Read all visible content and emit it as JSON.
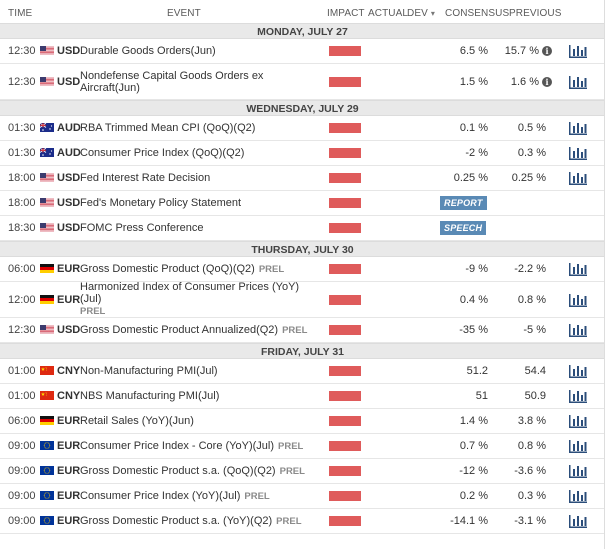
{
  "header": {
    "time": "TIME",
    "event": "EVENT",
    "impact": "IMPACT",
    "actual": "ACTUAL",
    "dev": "DEV",
    "consensus": "CONSENSUS",
    "previous": "PREVIOUS",
    "sort_glyph": "▾"
  },
  "colors": {
    "impact_high": "#df5b5b",
    "badge": "#5a8ab5",
    "day_bg": "#e9e9e9"
  },
  "days": [
    {
      "label": "MONDAY, JULY 27",
      "events": [
        {
          "time": "12:30",
          "currency": "USD",
          "flag": "us",
          "event": "Durable Goods Orders(Jun)",
          "prel": "",
          "consensus": "6.5 %",
          "previous": "15.7 %",
          "info": "i",
          "chart": true
        },
        {
          "time": "12:30",
          "currency": "USD",
          "flag": "us",
          "event": "Nondefense Capital Goods Orders ex Aircraft(Jun)",
          "prel": "",
          "consensus": "1.5 %",
          "previous": "1.6 %",
          "info": "i",
          "chart": true,
          "tall": true
        }
      ]
    },
    {
      "label": "WEDNESDAY, JULY 29",
      "events": [
        {
          "time": "01:30",
          "currency": "AUD",
          "flag": "au",
          "event": "RBA Trimmed Mean CPI (QoQ)(Q2)",
          "prel": "",
          "consensus": "0.1 %",
          "previous": "0.5 %",
          "chart": true
        },
        {
          "time": "01:30",
          "currency": "AUD",
          "flag": "au",
          "event": "Consumer Price Index (QoQ)(Q2)",
          "prel": "",
          "consensus": "-2 %",
          "previous": "0.3 %",
          "chart": true
        },
        {
          "time": "18:00",
          "currency": "USD",
          "flag": "us",
          "event": "Fed Interest Rate Decision",
          "prel": "",
          "consensus": "0.25 %",
          "previous": "0.25 %",
          "chart": true
        },
        {
          "time": "18:00",
          "currency": "USD",
          "flag": "us",
          "event": "Fed's Monetary Policy Statement",
          "prel": "",
          "badge": "REPORT",
          "chart": false
        },
        {
          "time": "18:30",
          "currency": "USD",
          "flag": "us",
          "event": "FOMC Press Conference",
          "prel": "",
          "badge": "SPEECH",
          "chart": false
        }
      ]
    },
    {
      "label": "THURSDAY, JULY 30",
      "events": [
        {
          "time": "06:00",
          "currency": "EUR",
          "flag": "de",
          "event": "Gross Domestic Product (QoQ)(Q2)",
          "prel": "PREL",
          "consensus": "-9 %",
          "previous": "-2.2 %",
          "chart": true
        },
        {
          "time": "12:00",
          "currency": "EUR",
          "flag": "de",
          "event": "Harmonized Index of Consumer Prices (YoY)(Jul)",
          "prel": "PREL",
          "consensus": "0.4 %",
          "previous": "0.8 %",
          "chart": true,
          "tall": true,
          "prel_newline": true
        },
        {
          "time": "12:30",
          "currency": "USD",
          "flag": "us",
          "event": "Gross Domestic Product Annualized(Q2)",
          "prel": "PREL",
          "consensus": "-35 %",
          "previous": "-5 %",
          "chart": true
        }
      ]
    },
    {
      "label": "FRIDAY, JULY 31",
      "events": [
        {
          "time": "01:00",
          "currency": "CNY",
          "flag": "cn",
          "event": "Non-Manufacturing PMI(Jul)",
          "prel": "",
          "consensus": "51.2",
          "previous": "54.4",
          "chart": true
        },
        {
          "time": "01:00",
          "currency": "CNY",
          "flag": "cn",
          "event": "NBS Manufacturing PMI(Jul)",
          "prel": "",
          "consensus": "51",
          "previous": "50.9",
          "chart": true
        },
        {
          "time": "06:00",
          "currency": "EUR",
          "flag": "de",
          "event": "Retail Sales (YoY)(Jun)",
          "prel": "",
          "consensus": "1.4 %",
          "previous": "3.8 %",
          "chart": true
        },
        {
          "time": "09:00",
          "currency": "EUR",
          "flag": "eu",
          "event": "Consumer Price Index - Core (YoY)(Jul)",
          "prel": "PREL",
          "consensus": "0.7 %",
          "previous": "0.8 %",
          "chart": true
        },
        {
          "time": "09:00",
          "currency": "EUR",
          "flag": "eu",
          "event": "Gross Domestic Product s.a. (QoQ)(Q2)",
          "prel": "PREL",
          "consensus": "-12 %",
          "previous": "-3.6 %",
          "chart": true
        },
        {
          "time": "09:00",
          "currency": "EUR",
          "flag": "eu",
          "event": "Consumer Price Index (YoY)(Jul)",
          "prel": "PREL",
          "consensus": "0.2 %",
          "previous": "0.3 %",
          "chart": true
        },
        {
          "time": "09:00",
          "currency": "EUR",
          "flag": "eu",
          "event": "Gross Domestic Product s.a. (YoY)(Q2)",
          "prel": "PREL",
          "consensus": "-14.1 %",
          "previous": "-3.1 %",
          "chart": true
        }
      ]
    }
  ]
}
